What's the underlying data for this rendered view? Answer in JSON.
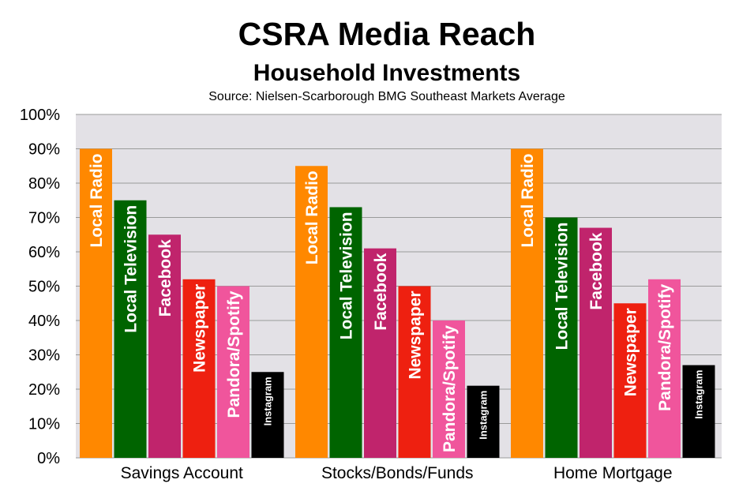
{
  "chart_data": {
    "type": "bar",
    "title": "CSRA Media Reach",
    "subtitle": "Household Investments",
    "source": "Source: Nielsen-Scarborough BMG Southeast Markets Average",
    "categories": [
      "Savings Account",
      "Stocks/Bonds/Funds",
      "Home Mortgage"
    ],
    "series": [
      {
        "name": "Local Radio",
        "color": "#FF8800",
        "values": [
          90,
          85,
          90
        ]
      },
      {
        "name": "Local Television",
        "color": "#006400",
        "values": [
          75,
          73,
          70
        ]
      },
      {
        "name": "Facebook",
        "color": "#C0246C",
        "values": [
          65,
          61,
          67
        ]
      },
      {
        "name": "Newspaper",
        "color": "#EE2010",
        "values": [
          52,
          50,
          45
        ]
      },
      {
        "name": "Pandora/Spotify",
        "color": "#F0559C",
        "values": [
          50,
          40,
          52
        ]
      },
      {
        "name": "Instagram",
        "color": "#000000",
        "values": [
          25,
          21,
          27
        ]
      }
    ],
    "ylim": [
      0,
      100
    ],
    "yticks": [
      "0%",
      "10%",
      "20%",
      "30%",
      "40%",
      "50%",
      "60%",
      "70%",
      "80%",
      "90%",
      "100%"
    ],
    "plot_background": "#E3E1E6",
    "grid": true,
    "legend": "none (series names drawn inside bars)"
  }
}
